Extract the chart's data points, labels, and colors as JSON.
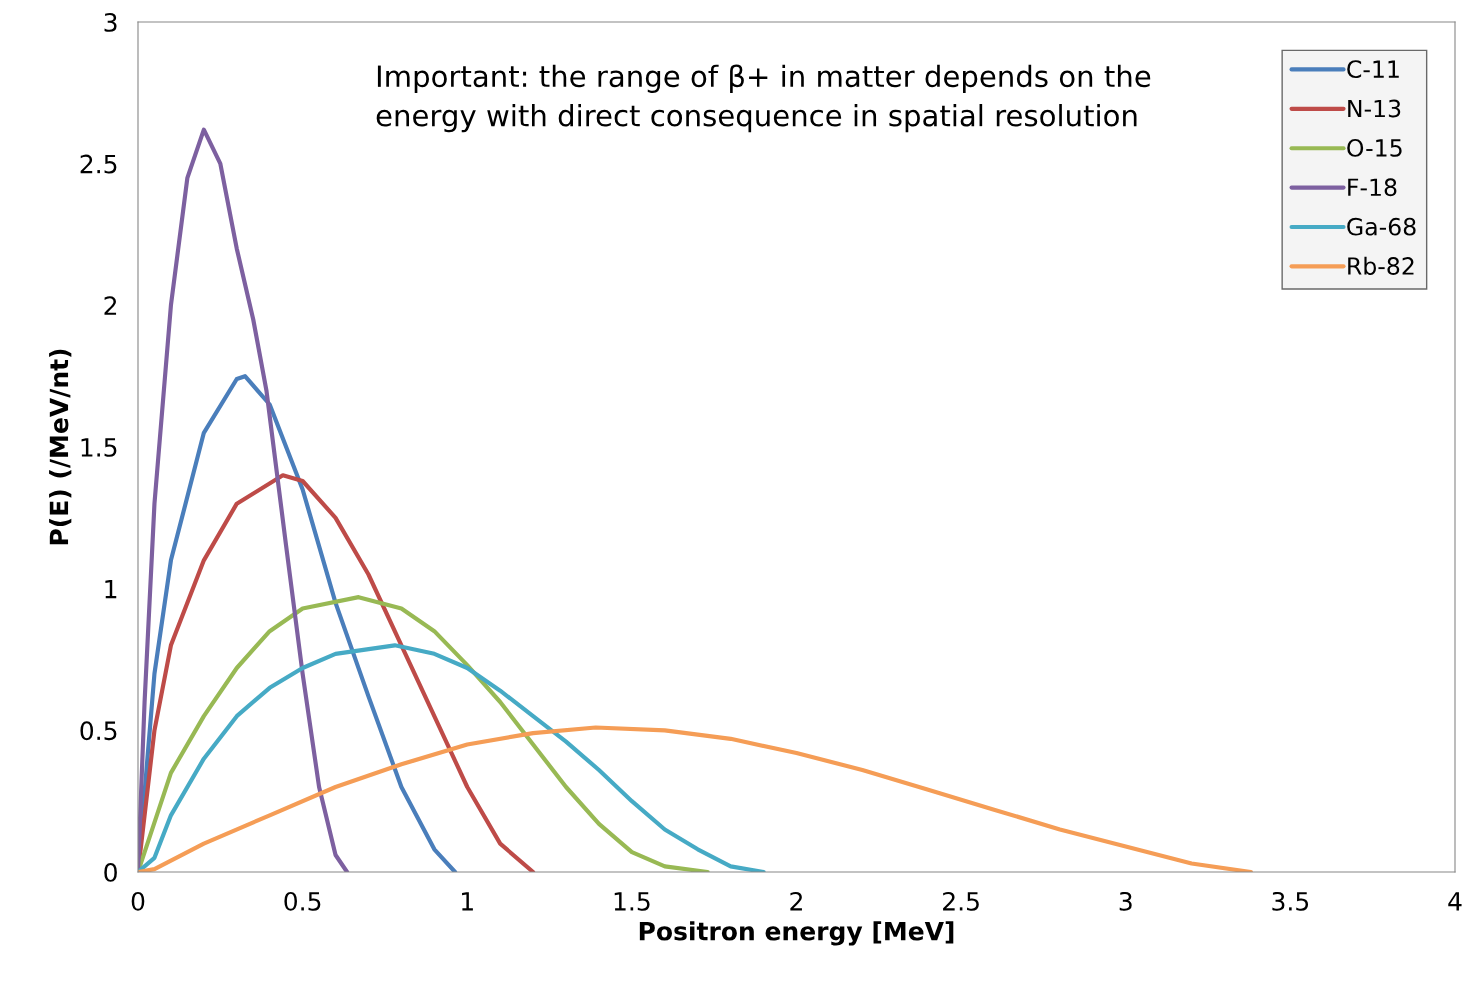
{
  "chart_data": {
    "type": "line",
    "xlabel": "Positron energy [MeV]",
    "ylabel": "P(E) (/MeV/nt)",
    "xlim": [
      0,
      4
    ],
    "ylim": [
      0,
      3
    ],
    "xticks": [
      0,
      0.5,
      1,
      1.5,
      2,
      2.5,
      3,
      3.5,
      4
    ],
    "yticks": [
      0,
      0.5,
      1,
      1.5,
      2,
      2.5,
      3
    ],
    "grid": false,
    "legend": "top right",
    "marker": "none",
    "line_style": "solid",
    "annotations": [
      "Important: the range of β+ in matter depends on the energy with direct consequence in spatial resolution"
    ],
    "series": [
      {
        "name": "C-11",
        "color": "#4a7ebb",
        "x": [
          0,
          0.05,
          0.1,
          0.2,
          0.3,
          0.325,
          0.4,
          0.5,
          0.6,
          0.7,
          0.8,
          0.9,
          0.963
        ],
        "values": [
          0,
          0.7,
          1.1,
          1.55,
          1.74,
          1.75,
          1.65,
          1.35,
          0.95,
          0.62,
          0.3,
          0.08,
          0
        ]
      },
      {
        "name": "N-13",
        "color": "#be4b48",
        "x": [
          0,
          0.05,
          0.1,
          0.2,
          0.3,
          0.44,
          0.5,
          0.6,
          0.7,
          0.8,
          0.9,
          1.0,
          1.1,
          1.2
        ],
        "values": [
          0,
          0.5,
          0.8,
          1.1,
          1.3,
          1.4,
          1.38,
          1.25,
          1.05,
          0.8,
          0.55,
          0.3,
          0.1,
          0
        ]
      },
      {
        "name": "O-15",
        "color": "#98b954",
        "x": [
          0,
          0.1,
          0.2,
          0.3,
          0.4,
          0.5,
          0.67,
          0.8,
          0.9,
          1.0,
          1.1,
          1.2,
          1.3,
          1.4,
          1.5,
          1.6,
          1.73
        ],
        "values": [
          0,
          0.35,
          0.55,
          0.72,
          0.85,
          0.93,
          0.97,
          0.93,
          0.85,
          0.73,
          0.6,
          0.45,
          0.3,
          0.17,
          0.07,
          0.02,
          0
        ]
      },
      {
        "name": "F-18",
        "color": "#7d60a0",
        "x": [
          0,
          0.02,
          0.05,
          0.1,
          0.15,
          0.2,
          0.25,
          0.3,
          0.35,
          0.39,
          0.45,
          0.5,
          0.55,
          0.6,
          0.635
        ],
        "values": [
          0,
          0.6,
          1.3,
          2.0,
          2.45,
          2.62,
          2.5,
          2.2,
          1.95,
          1.7,
          1.15,
          0.7,
          0.3,
          0.06,
          0
        ]
      },
      {
        "name": "Ga-68",
        "color": "#46aac5",
        "x": [
          0,
          0.05,
          0.1,
          0.2,
          0.3,
          0.4,
          0.5,
          0.6,
          0.78,
          0.9,
          1.0,
          1.1,
          1.2,
          1.3,
          1.4,
          1.5,
          1.6,
          1.7,
          1.8,
          1.9
        ],
        "values": [
          0,
          0.05,
          0.2,
          0.4,
          0.55,
          0.65,
          0.72,
          0.77,
          0.8,
          0.77,
          0.72,
          0.64,
          0.55,
          0.46,
          0.36,
          0.25,
          0.15,
          0.08,
          0.02,
          0
        ]
      },
      {
        "name": "Rb-82",
        "color": "#f59d56",
        "x": [
          0,
          0.05,
          0.2,
          0.4,
          0.6,
          0.8,
          1.0,
          1.2,
          1.39,
          1.6,
          1.8,
          2.0,
          2.2,
          2.4,
          2.6,
          2.8,
          3.0,
          3.2,
          3.38
        ],
        "values": [
          0,
          0.01,
          0.1,
          0.2,
          0.3,
          0.38,
          0.45,
          0.49,
          0.51,
          0.5,
          0.47,
          0.42,
          0.36,
          0.29,
          0.22,
          0.15,
          0.09,
          0.03,
          0
        ]
      }
    ]
  }
}
